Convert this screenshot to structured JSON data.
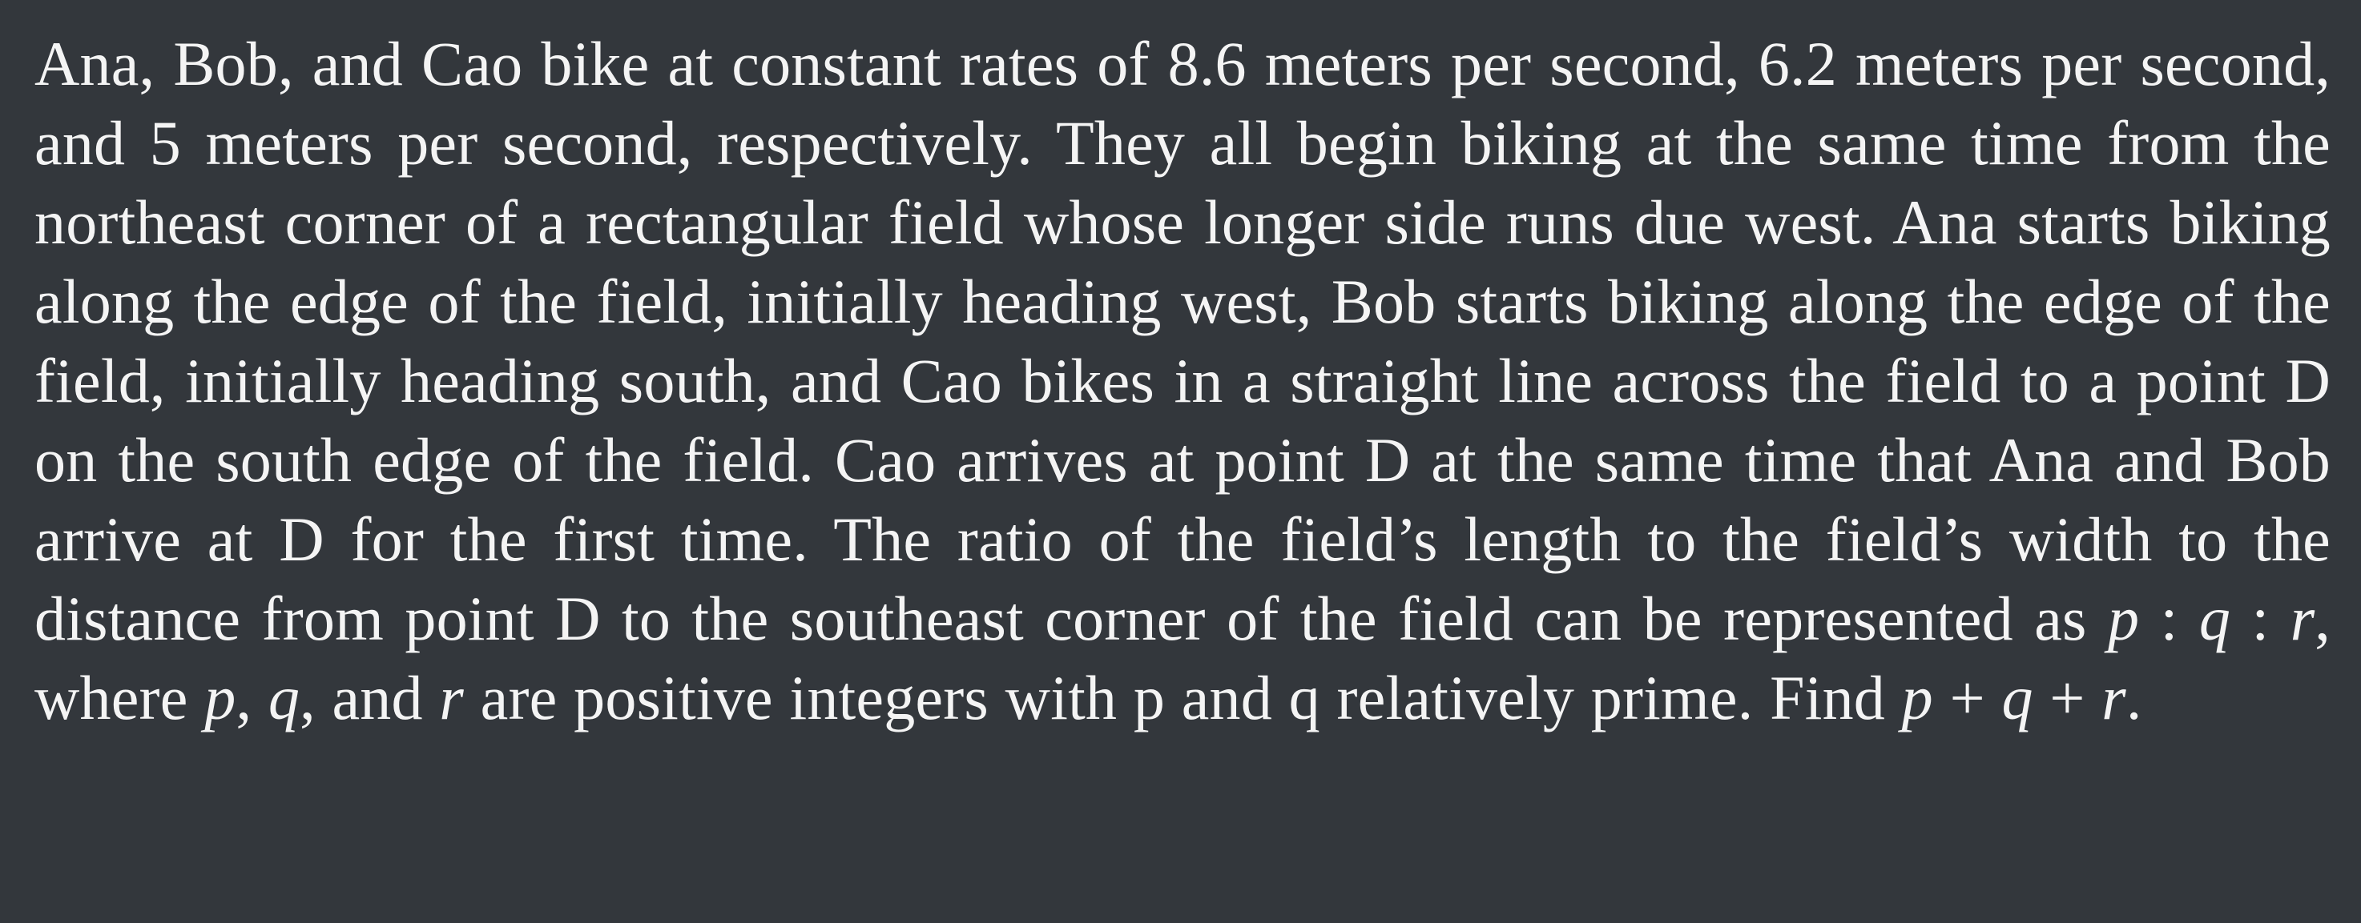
{
  "document": {
    "segments": [
      "Ana, Bob, and Cao bike at constant rates of 8.6 meters per second, 6.2 meters per second, and 5 meters per second, respectively. They all begin biking at the same time from the northeast corner of a rectangular field whose longer side runs due west. Ana starts biking along the edge of the field, initially heading west, Bob starts biking along the edge of the field, initially heading south, and Cao bikes in a straight line across the field to a point D on the south edge of the field. Cao arrives at point D at the same time that Ana and Bob arrive at D for the first time. The ratio of the field’s length to the field’s width to the distance from point D to the southeast corner of the field can be represented as ",
      "p",
      " : ",
      "q",
      " : ",
      "r",
      ", where ",
      "p",
      ", ",
      "q",
      ", and ",
      "r",
      " are positive integers with p and q relatively prime. Find ",
      "p",
      " + ",
      "q",
      " + ",
      "r",
      "."
    ]
  }
}
